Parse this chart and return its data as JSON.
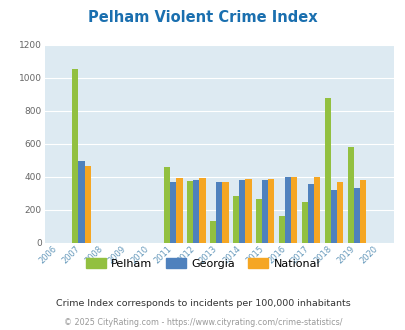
{
  "title": "Pelham Violent Crime Index",
  "title_color": "#1a6faf",
  "years": [
    2006,
    2007,
    2008,
    2009,
    2010,
    2011,
    2012,
    2013,
    2014,
    2015,
    2016,
    2017,
    2018,
    2019,
    2020
  ],
  "pelham": [
    0,
    1050,
    0,
    0,
    0,
    455,
    375,
    130,
    285,
    265,
    160,
    248,
    875,
    580,
    0
  ],
  "georgia": [
    0,
    497,
    0,
    0,
    0,
    370,
    378,
    365,
    378,
    378,
    397,
    354,
    320,
    332,
    0
  ],
  "national": [
    0,
    465,
    0,
    0,
    0,
    392,
    390,
    368,
    383,
    386,
    397,
    398,
    369,
    379,
    0
  ],
  "pelham_color": "#92c040",
  "georgia_color": "#4f81bd",
  "national_color": "#f5a623",
  "plot_bg": "#ddeaf2",
  "ylim": [
    0,
    1200
  ],
  "yticks": [
    0,
    200,
    400,
    600,
    800,
    1000,
    1200
  ],
  "grid_color": "#ffffff",
  "bar_width": 0.27,
  "subtitle": "Crime Index corresponds to incidents per 100,000 inhabitants",
  "footer": "© 2025 CityRating.com - https://www.cityrating.com/crime-statistics/",
  "subtitle_color": "#333333",
  "footer_color": "#999999",
  "legend_labels": [
    "Pelham",
    "Georgia",
    "National"
  ],
  "xlabel_color": "#6699bb",
  "ytick_color": "#666666"
}
